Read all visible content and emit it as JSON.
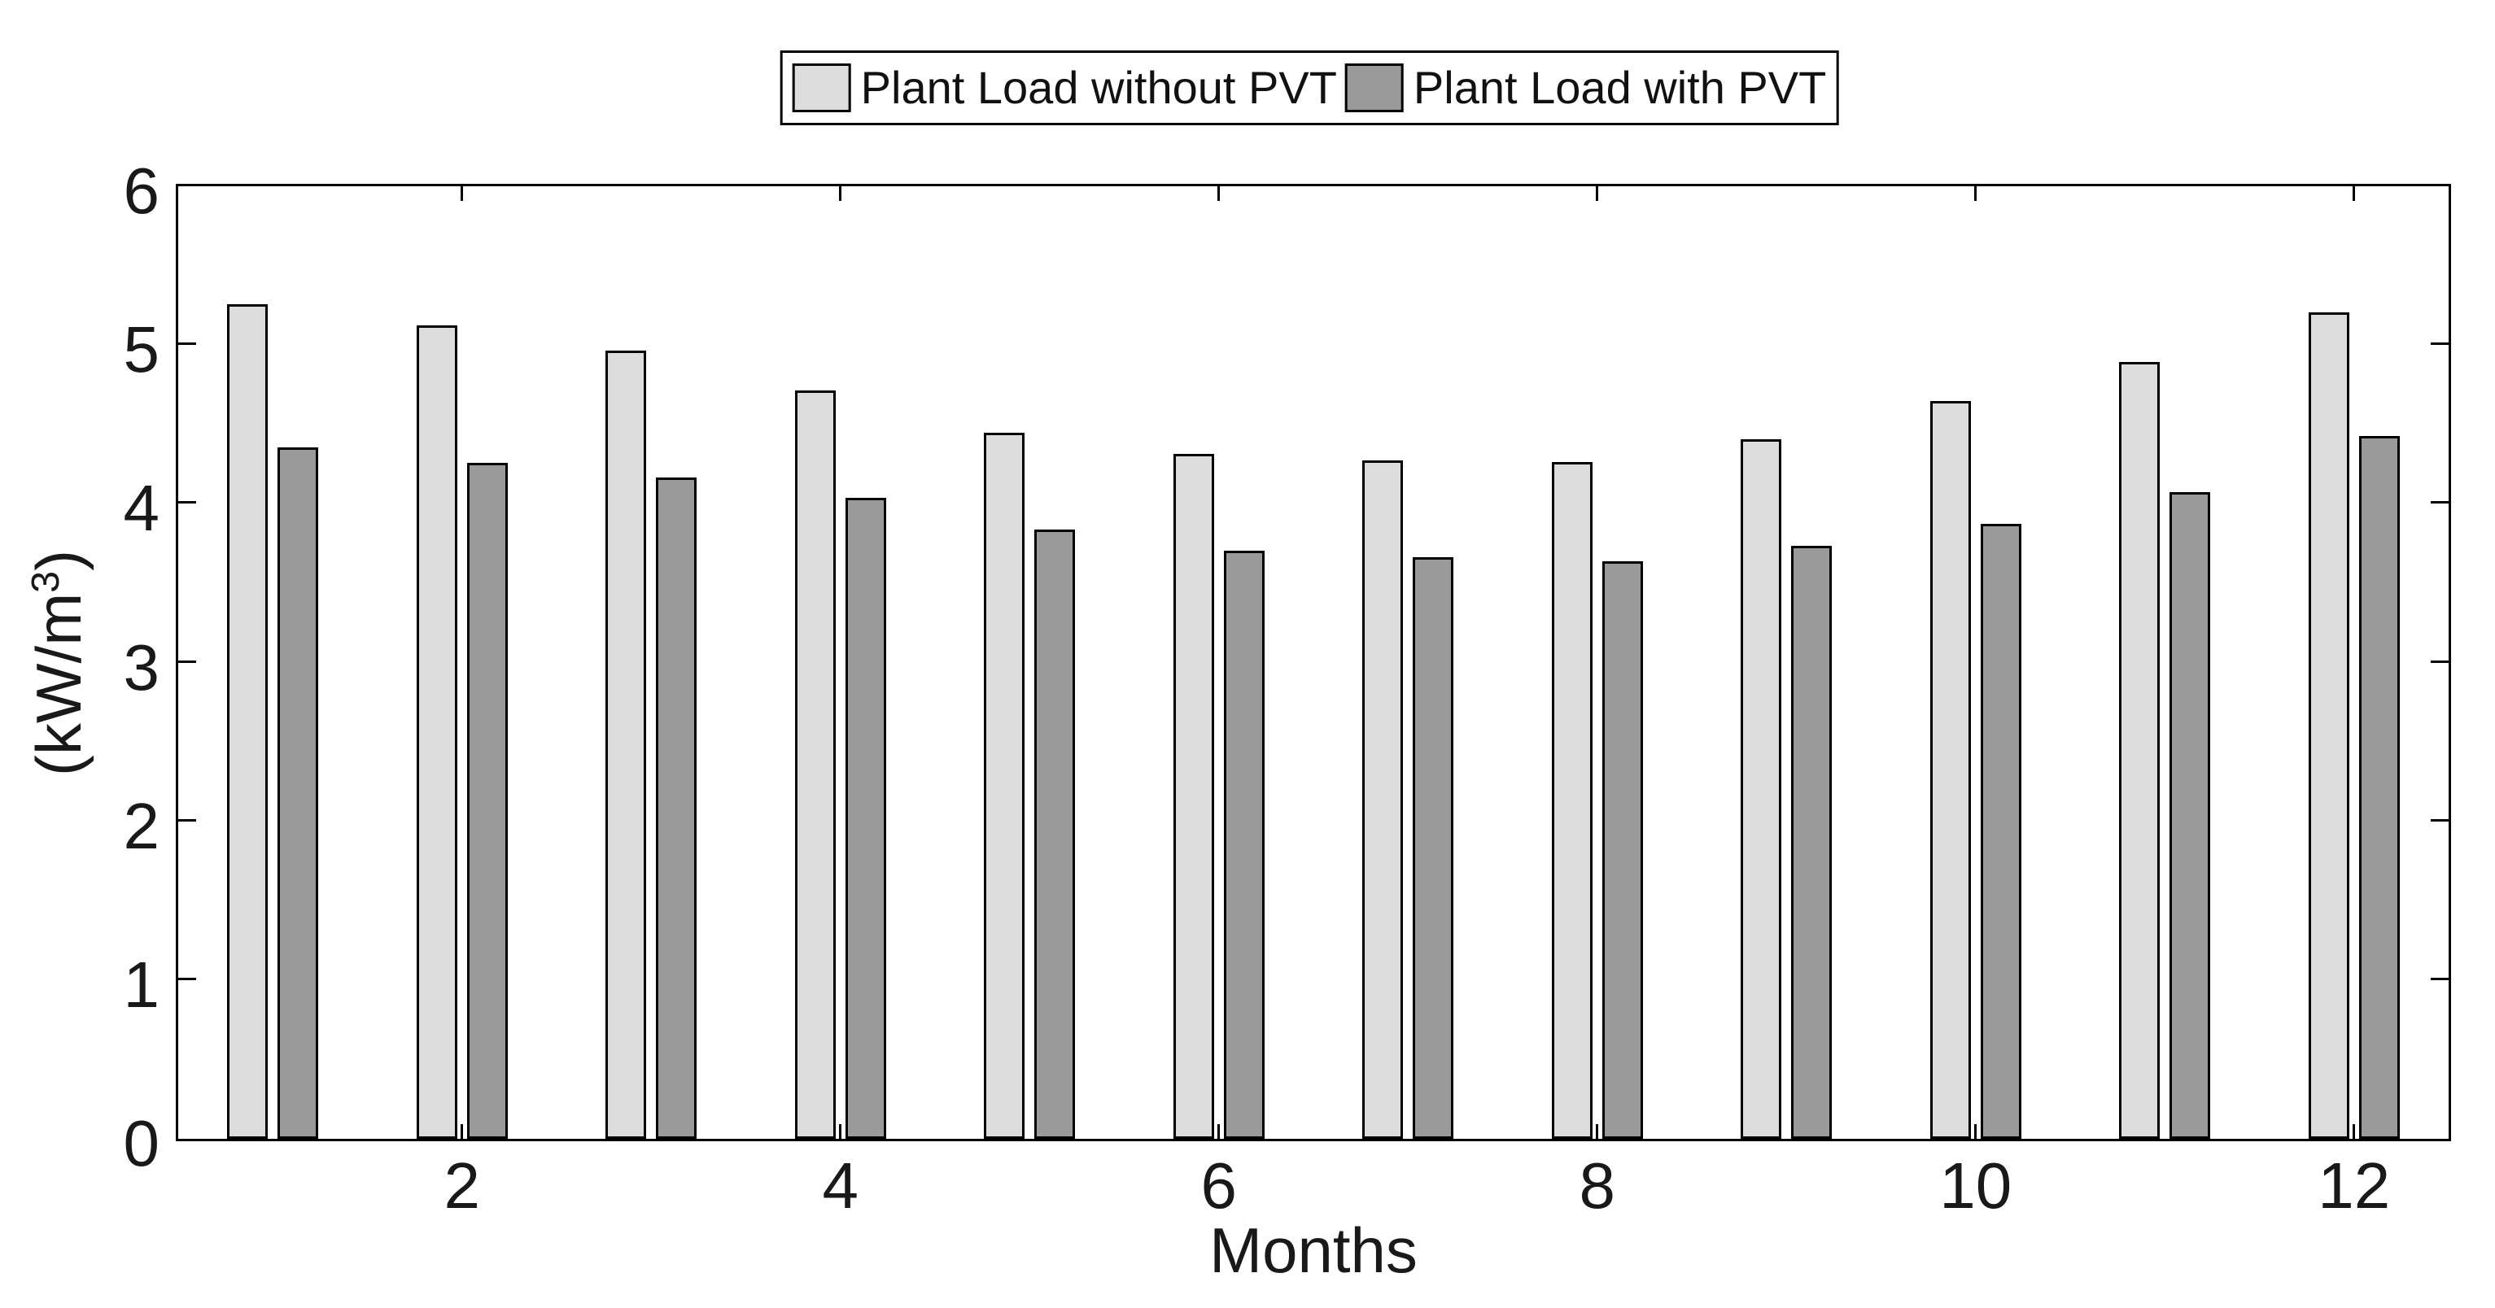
{
  "figure": {
    "background": "#ffffff",
    "axis_color": "#000000",
    "label_color": "#191919"
  },
  "chart_data": {
    "type": "bar",
    "title": "",
    "xlabel": "Months",
    "ylabel": {
      "prefix": "(kW/m",
      "sup": "3",
      "suffix": ")"
    },
    "ylabel_text": "(kW/m3)",
    "categories": [
      1,
      2,
      3,
      4,
      5,
      6,
      7,
      8,
      9,
      10,
      11,
      12
    ],
    "x_labeled_months": [
      2,
      4,
      6,
      8,
      10,
      12
    ],
    "x_tick_labels": [
      "2",
      "4",
      "6",
      "8",
      "10",
      "12"
    ],
    "y_ticks": [
      0,
      1,
      2,
      3,
      4,
      5,
      6
    ],
    "y_tick_labels": [
      "0",
      "1",
      "2",
      "3",
      "4",
      "5",
      "6"
    ],
    "ylim": [
      0,
      6
    ],
    "grid": false,
    "legend_position": "top-center-outside",
    "series": [
      {
        "name": "Plant Load without PVT",
        "color": "#dcdcdc",
        "border_color": "#000000",
        "values": [
          5.24,
          5.11,
          4.95,
          4.7,
          4.43,
          4.3,
          4.26,
          4.25,
          4.39,
          4.63,
          4.88,
          5.19
        ]
      },
      {
        "name": "Plant Load with PVT",
        "color": "#9a9a9a",
        "border_color": "#000000",
        "values": [
          4.34,
          4.24,
          4.15,
          4.02,
          3.82,
          3.69,
          3.65,
          3.62,
          3.72,
          3.86,
          4.06,
          4.41
        ]
      }
    ]
  }
}
